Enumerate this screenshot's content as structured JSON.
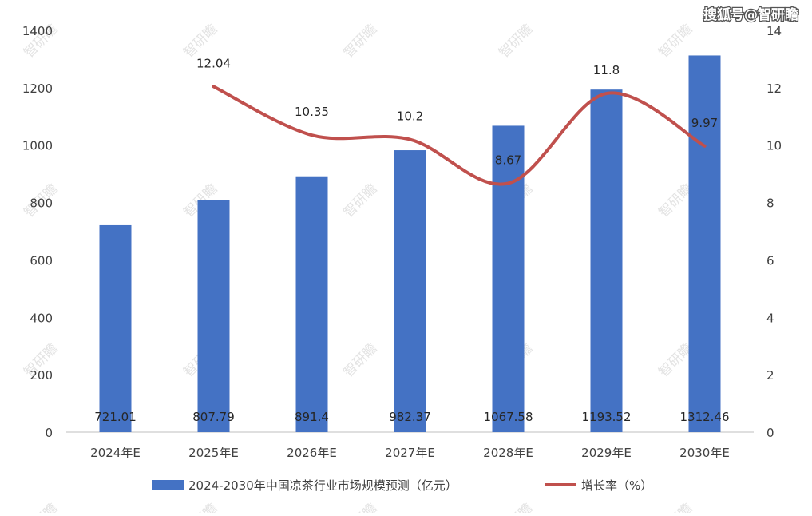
{
  "chart_data": {
    "type": "bar",
    "categories": [
      "2024年E",
      "2025年E",
      "2026年E",
      "2027年E",
      "2028年E",
      "2029年E",
      "2030年E"
    ],
    "series": [
      {
        "name": "2024-2030年中国凉茶行业市场规模预测（亿元）",
        "type": "bar",
        "axis": "left",
        "color": "#4472C4",
        "values": [
          721.01,
          807.79,
          891.4,
          982.37,
          1067.58,
          1193.52,
          1312.46
        ],
        "labels": [
          "721.01",
          "807.79",
          "891.4",
          "982.37",
          "1067.58",
          "1193.52",
          "1312.46"
        ]
      },
      {
        "name": "增长率（%）",
        "type": "line",
        "axis": "right",
        "color": "#C0504D",
        "values": [
          null,
          12.04,
          10.35,
          10.2,
          8.67,
          11.8,
          9.97
        ],
        "labels": [
          "",
          "12.04",
          "10.35",
          "10.2",
          "8.67",
          "11.8",
          "9.97"
        ]
      }
    ],
    "y_left": {
      "lim": [
        0,
        1400
      ],
      "ticks": [
        "0",
        "200",
        "400",
        "600",
        "800",
        "1000",
        "1200",
        "1400"
      ]
    },
    "y_right": {
      "lim": [
        0,
        14
      ],
      "ticks": [
        "0",
        "2",
        "4",
        "6",
        "8",
        "10",
        "12",
        "14"
      ]
    },
    "grid": false,
    "legend_position": "bottom"
  },
  "watermark": {
    "source": "搜狐号@智研瞻",
    "tile": "智研瞻"
  }
}
